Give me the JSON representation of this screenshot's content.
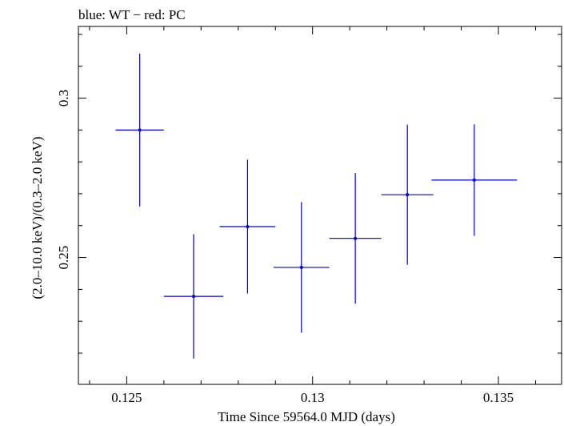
{
  "chart_data": {
    "type": "scatter",
    "title": "blue: WT − red: PC",
    "xlabel": "Time Since 59564.0 MJD (days)",
    "ylabel": "(2.0–10.0 keV)/(0.3–2.0 keV)",
    "xlim": [
      0.1237,
      0.1367
    ],
    "ylim": [
      0.2102,
      0.3225
    ],
    "x_ticks": [
      0.125,
      0.13,
      0.135
    ],
    "x_tick_labels": [
      "0.125",
      "0.13",
      "0.135"
    ],
    "y_ticks": [
      0.25,
      0.3
    ],
    "y_tick_labels": [
      "0.25",
      "0.3"
    ],
    "grid": false,
    "series": [
      {
        "color": "#0000cc",
        "points": [
          {
            "x": 0.12535,
            "y": 0.29,
            "xerr": 0.00065,
            "yerr_low": 0.024,
            "yerr_high": 0.024
          },
          {
            "x": 0.1268,
            "y": 0.2378,
            "xerr": 0.0008,
            "yerr_low": 0.0195,
            "yerr_high": 0.0195
          },
          {
            "x": 0.12825,
            "y": 0.2597,
            "xerr": 0.00075,
            "yerr_low": 0.021,
            "yerr_high": 0.021
          },
          {
            "x": 0.1297,
            "y": 0.2469,
            "xerr": 0.00075,
            "yerr_low": 0.0205,
            "yerr_high": 0.0205
          },
          {
            "x": 0.13115,
            "y": 0.256,
            "xerr": 0.0007,
            "yerr_low": 0.0205,
            "yerr_high": 0.0205
          },
          {
            "x": 0.13255,
            "y": 0.2697,
            "xerr": 0.0007,
            "yerr_low": 0.022,
            "yerr_high": 0.022
          },
          {
            "x": 0.13435,
            "y": 0.2743,
            "xerr": 0.00115,
            "yerr_low": 0.0175,
            "yerr_high": 0.0175
          }
        ]
      }
    ]
  }
}
